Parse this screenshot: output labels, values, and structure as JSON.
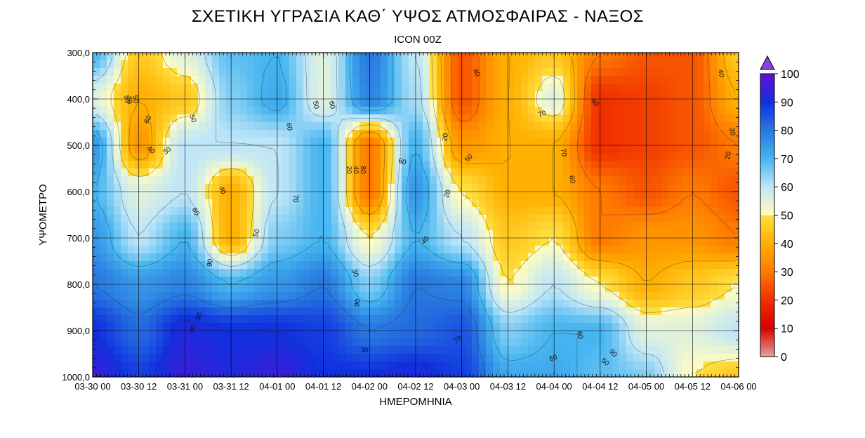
{
  "title": "ΣΧΕΤΙΚΗ ΥΓΡΑΣΙΑ ΚΑΘ΄ ΥΨΟΣ ΑΤΜΟΣΦΑΙΡΑΣ - ΝΑΞΟΣ",
  "subtitle": "ICON 00Z",
  "chart_data": {
    "type": "heatmap",
    "xlabel": "ΗΜΕΡΟΜΗΝΙΑ",
    "ylabel": "ΥΨΟΜΕΤΡΟ",
    "x_tick_labels": [
      "03-30 00",
      "03-30 12",
      "03-31 00",
      "03-31 12",
      "04-01 00",
      "04-01 12",
      "04-02 00",
      "04-02 12",
      "04-03 00",
      "04-03 12",
      "04-04 00",
      "04-04 12",
      "04-05 00",
      "04-05 12",
      "04-06 00"
    ],
    "y_tick_labels": [
      "300,0",
      "400,0",
      "500,0",
      "600,0",
      "700,0",
      "800,0",
      "900,0",
      "1000,0"
    ],
    "ylim": [
      1000,
      300
    ],
    "colorbar_ticks": [
      "0",
      "10",
      "20",
      "30",
      "40",
      "50",
      "60",
      "70",
      "80",
      "90",
      "100"
    ],
    "colorbar_range": [
      0,
      100
    ],
    "colorbar_stops": [
      "#e8a0a0",
      "#d40000",
      "#f03000",
      "#ff7a00",
      "#ffb000",
      "#ffe040",
      "#fffcc0",
      "#bfe6f8",
      "#45b5f0",
      "#2878e0",
      "#1030e0",
      "#6010d0",
      "#8040e0"
    ],
    "levels": [
      300,
      400,
      500,
      600,
      700,
      800,
      900,
      1000
    ],
    "times": [
      "03-30 00",
      "03-30 12",
      "03-31 00",
      "03-31 12",
      "04-01 00",
      "04-01 12",
      "04-02 00",
      "04-02 12",
      "04-03 00",
      "04-03 12",
      "04-04 00",
      "04-04 12",
      "04-05 00",
      "04-05 12",
      "04-06 00"
    ],
    "values": [
      [
        70,
        45,
        55,
        68,
        70,
        55,
        80,
        60,
        25,
        40,
        45,
        30,
        25,
        25,
        45
      ],
      [
        55,
        40,
        45,
        65,
        72,
        55,
        78,
        62,
        25,
        40,
        55,
        20,
        22,
        25,
        40
      ],
      [
        75,
        35,
        60,
        60,
        60,
        70,
        30,
        70,
        35,
        40,
        40,
        20,
        22,
        25,
        30
      ],
      [
        70,
        55,
        60,
        40,
        60,
        70,
        30,
        75,
        50,
        40,
        40,
        30,
        25,
        30,
        25
      ],
      [
        75,
        60,
        70,
        40,
        65,
        70,
        50,
        70,
        60,
        45,
        50,
        30,
        35,
        35,
        30
      ],
      [
        80,
        75,
        78,
        70,
        75,
        80,
        65,
        80,
        78,
        50,
        60,
        50,
        40,
        45,
        50
      ],
      [
        90,
        82,
        92,
        90,
        90,
        88,
        80,
        82,
        85,
        65,
        70,
        70,
        55,
        55,
        60
      ],
      [
        95,
        88,
        95,
        92,
        95,
        90,
        90,
        92,
        88,
        72,
        72,
        68,
        65,
        50,
        45
      ]
    ],
    "contour_labels": [
      "50",
      "60",
      "40",
      "30",
      "50",
      "60",
      "70",
      "50",
      "40",
      "50",
      "60",
      "70",
      "90",
      "30",
      "40",
      "50",
      "60",
      "20",
      "40",
      "80",
      "60",
      "90",
      "30",
      "20",
      "40",
      "50",
      "20",
      "40",
      "30",
      "70",
      "70",
      "60",
      "60",
      "60",
      "90",
      "50",
      "60",
      "70",
      "30",
      "20",
      "40"
    ]
  }
}
